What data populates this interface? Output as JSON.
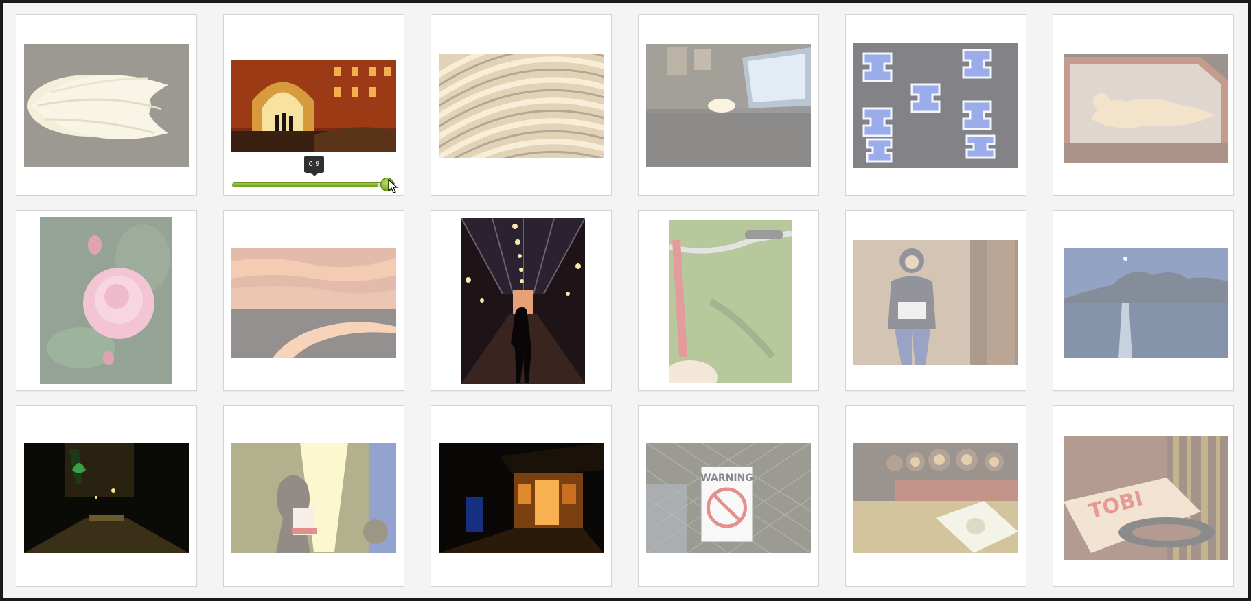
{
  "slider": {
    "tooltip_value": "0.9",
    "value": 0.9
  },
  "photos": [
    {
      "name": "flower-bud-photo",
      "faded": true
    },
    {
      "name": "archway-night-photo",
      "faded": false
    },
    {
      "name": "curved-roof-photo",
      "faded": true
    },
    {
      "name": "desk-laptop-photo",
      "faded": true
    },
    {
      "name": "blue-figures-photo",
      "faded": true
    },
    {
      "name": "glass-case-figure-photo",
      "faded": true
    },
    {
      "name": "pink-rose-photo",
      "faded": true
    },
    {
      "name": "sunset-river-photo",
      "faded": true
    },
    {
      "name": "glass-arcade-photo",
      "faded": false
    },
    {
      "name": "bicycle-grass-photo",
      "faded": true
    },
    {
      "name": "mona-lisa-graffiti-photo",
      "faded": true
    },
    {
      "name": "moonlit-lake-photo",
      "faded": true
    },
    {
      "name": "dark-alley-photo",
      "faded": false
    },
    {
      "name": "singer-stage-photo",
      "faded": true
    },
    {
      "name": "lit-doorway-photo",
      "faded": false
    },
    {
      "name": "warning-sign-photo",
      "faded": true
    },
    {
      "name": "pinball-dollar-photo",
      "faded": true
    },
    {
      "name": "books-box-photo",
      "faded": true
    }
  ],
  "warning_sign_text": "WARNING",
  "box_text": "TOBI"
}
